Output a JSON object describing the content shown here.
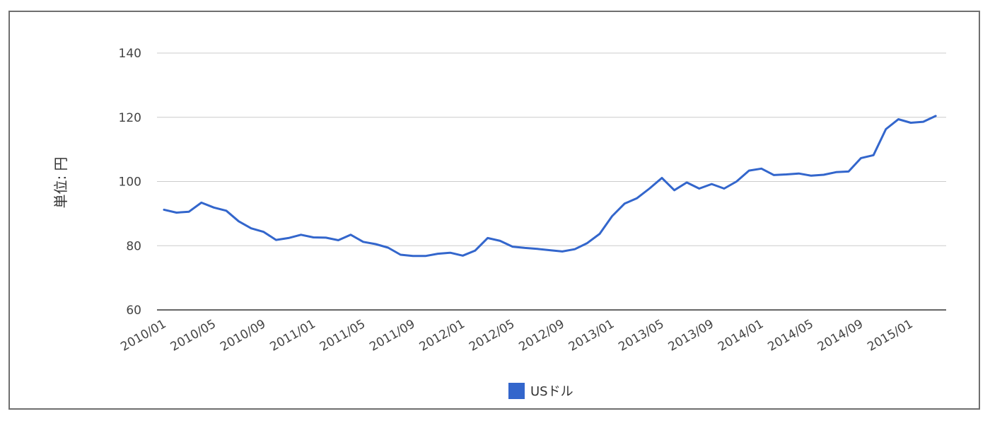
{
  "chart_data": {
    "type": "line",
    "ylabel": "単位: 円",
    "ylim": [
      60,
      140
    ],
    "yticks": [
      60,
      80,
      100,
      120,
      140
    ],
    "grid": true,
    "legend_position": "bottom",
    "x_tick_labels": [
      "2010/01",
      "2010/05",
      "2010/09",
      "2011/01",
      "2011/05",
      "2011/09",
      "2012/01",
      "2012/05",
      "2012/09",
      "2013/01",
      "2013/05",
      "2013/09",
      "2014/01",
      "2014/05",
      "2014/09",
      "2015/01"
    ],
    "series": [
      {
        "name": "USドル",
        "color": "#3366cc",
        "x": [
          "2010/01",
          "2010/02",
          "2010/03",
          "2010/04",
          "2010/05",
          "2010/06",
          "2010/07",
          "2010/08",
          "2010/09",
          "2010/10",
          "2010/11",
          "2010/12",
          "2011/01",
          "2011/02",
          "2011/03",
          "2011/04",
          "2011/05",
          "2011/06",
          "2011/07",
          "2011/08",
          "2011/09",
          "2011/10",
          "2011/11",
          "2011/12",
          "2012/01",
          "2012/02",
          "2012/03",
          "2012/04",
          "2012/05",
          "2012/06",
          "2012/07",
          "2012/08",
          "2012/09",
          "2012/10",
          "2012/11",
          "2012/12",
          "2013/01",
          "2013/02",
          "2013/03",
          "2013/04",
          "2013/05",
          "2013/06",
          "2013/07",
          "2013/08",
          "2013/09",
          "2013/10",
          "2013/11",
          "2013/12",
          "2014/01",
          "2014/02",
          "2014/03",
          "2014/04",
          "2014/05",
          "2014/06",
          "2014/07",
          "2014/08",
          "2014/09",
          "2014/10",
          "2014/11",
          "2014/12",
          "2015/01",
          "2015/02",
          "2015/03"
        ],
        "values": [
          91.2,
          90.3,
          90.6,
          93.4,
          91.9,
          90.9,
          87.6,
          85.4,
          84.3,
          81.8,
          82.4,
          83.4,
          82.6,
          82.5,
          81.7,
          83.4,
          81.2,
          80.5,
          79.4,
          77.2,
          76.8,
          76.8,
          77.5,
          77.8,
          76.9,
          78.5,
          82.4,
          81.5,
          79.7,
          79.3,
          79.0,
          78.6,
          78.2,
          78.9,
          80.8,
          83.7,
          89.2,
          93.1,
          94.8,
          97.8,
          101.1,
          97.3,
          99.7,
          97.8,
          99.2,
          97.8,
          100.0,
          103.4,
          104.0,
          102.0,
          102.2,
          102.5,
          101.8,
          102.1,
          102.9,
          103.1,
          107.3,
          108.2,
          116.3,
          119.4,
          118.3,
          118.6,
          120.4
        ]
      }
    ]
  }
}
